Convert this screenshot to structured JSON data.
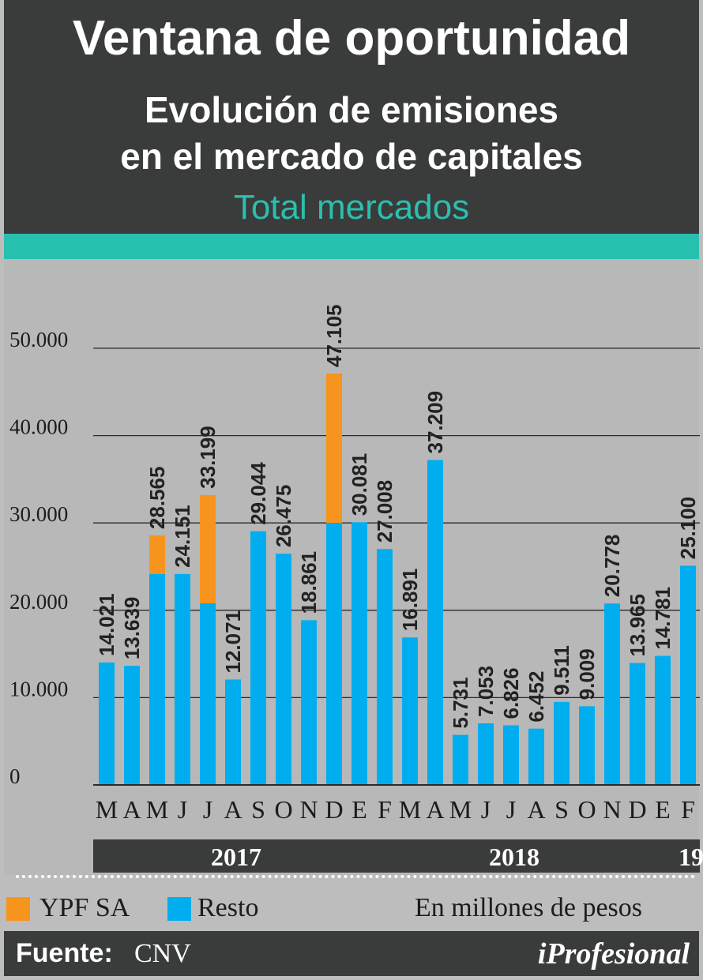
{
  "header": {
    "title": "Ventana de oportunidad",
    "subtitle_line1": "Evolución de emisiones",
    "subtitle_line2": "en el mercado de capitales",
    "subtitle_line3": "Total mercados"
  },
  "legend": {
    "ypf_label": "YPF SA",
    "resto_label": "Resto",
    "unit_note": "En millones de pesos"
  },
  "footer": {
    "source_label": "Fuente:",
    "source_value": "CNV",
    "brand_prefix": "i",
    "brand_name": "Profesional"
  },
  "colors": {
    "resto": "#00aeef",
    "ypf": "#f7941d",
    "header_bg": "#3a3b3b",
    "accent": "#27bfae",
    "plot_bg": "#b8b8b8"
  },
  "chart_data": {
    "type": "bar",
    "stacked": true,
    "title": "Ventana de oportunidad",
    "subtitle": "Evolución de emisiones en el mercado de capitales",
    "ylabel": "",
    "xlabel": "",
    "ylim": [
      0,
      55000
    ],
    "yticks": [
      0,
      10000,
      20000,
      30000,
      40000,
      50000
    ],
    "ytick_labels": [
      "0",
      "10.000",
      "20.000",
      "30.000",
      "40.000",
      "50.000"
    ],
    "grid": true,
    "categories": [
      "M",
      "A",
      "M",
      "J",
      "J",
      "A",
      "S",
      "O",
      "N",
      "D",
      "E",
      "F",
      "M",
      "A",
      "M",
      "J",
      "J",
      "A",
      "S",
      "O",
      "N",
      "D",
      "E",
      "F"
    ],
    "series": [
      {
        "name": "Resto",
        "values": [
          14021,
          13639,
          24151,
          24151,
          20800,
          12071,
          29044,
          26475,
          18861,
          30000,
          30081,
          27008,
          16891,
          37209,
          5731,
          7053,
          6826,
          6452,
          9511,
          9009,
          20778,
          13965,
          14781,
          25100
        ]
      },
      {
        "name": "YPF SA",
        "values": [
          0,
          0,
          4414,
          0,
          12399,
          0,
          0,
          0,
          0,
          17105,
          0,
          0,
          0,
          0,
          0,
          0,
          0,
          0,
          0,
          0,
          0,
          0,
          0,
          0
        ]
      }
    ],
    "totals": [
      14021,
      13639,
      28565,
      24151,
      33199,
      12071,
      29044,
      26475,
      18861,
      47105,
      30081,
      27008,
      16891,
      37209,
      5731,
      7053,
      6826,
      6452,
      9511,
      9009,
      20778,
      13965,
      14781,
      25100
    ],
    "value_labels": [
      "14.021",
      "13.639",
      "28.565",
      "24.151",
      "33.199",
      "12.071",
      "29.044",
      "26.475",
      "18.861",
      "47.105",
      "30.081",
      "27.008",
      "16.891",
      "37.209",
      "5.731",
      "7.053",
      "6.826",
      "6.452",
      "9.511",
      "9.009",
      "20.778",
      "13.965",
      "14.781",
      "25.100"
    ],
    "years": [
      {
        "label": "2017",
        "from": 0,
        "to": 9
      },
      {
        "label": "2018",
        "from": 10,
        "to": 21
      },
      {
        "label": "19",
        "from": 22,
        "to": 23
      }
    ],
    "legend_position": "bottom"
  }
}
